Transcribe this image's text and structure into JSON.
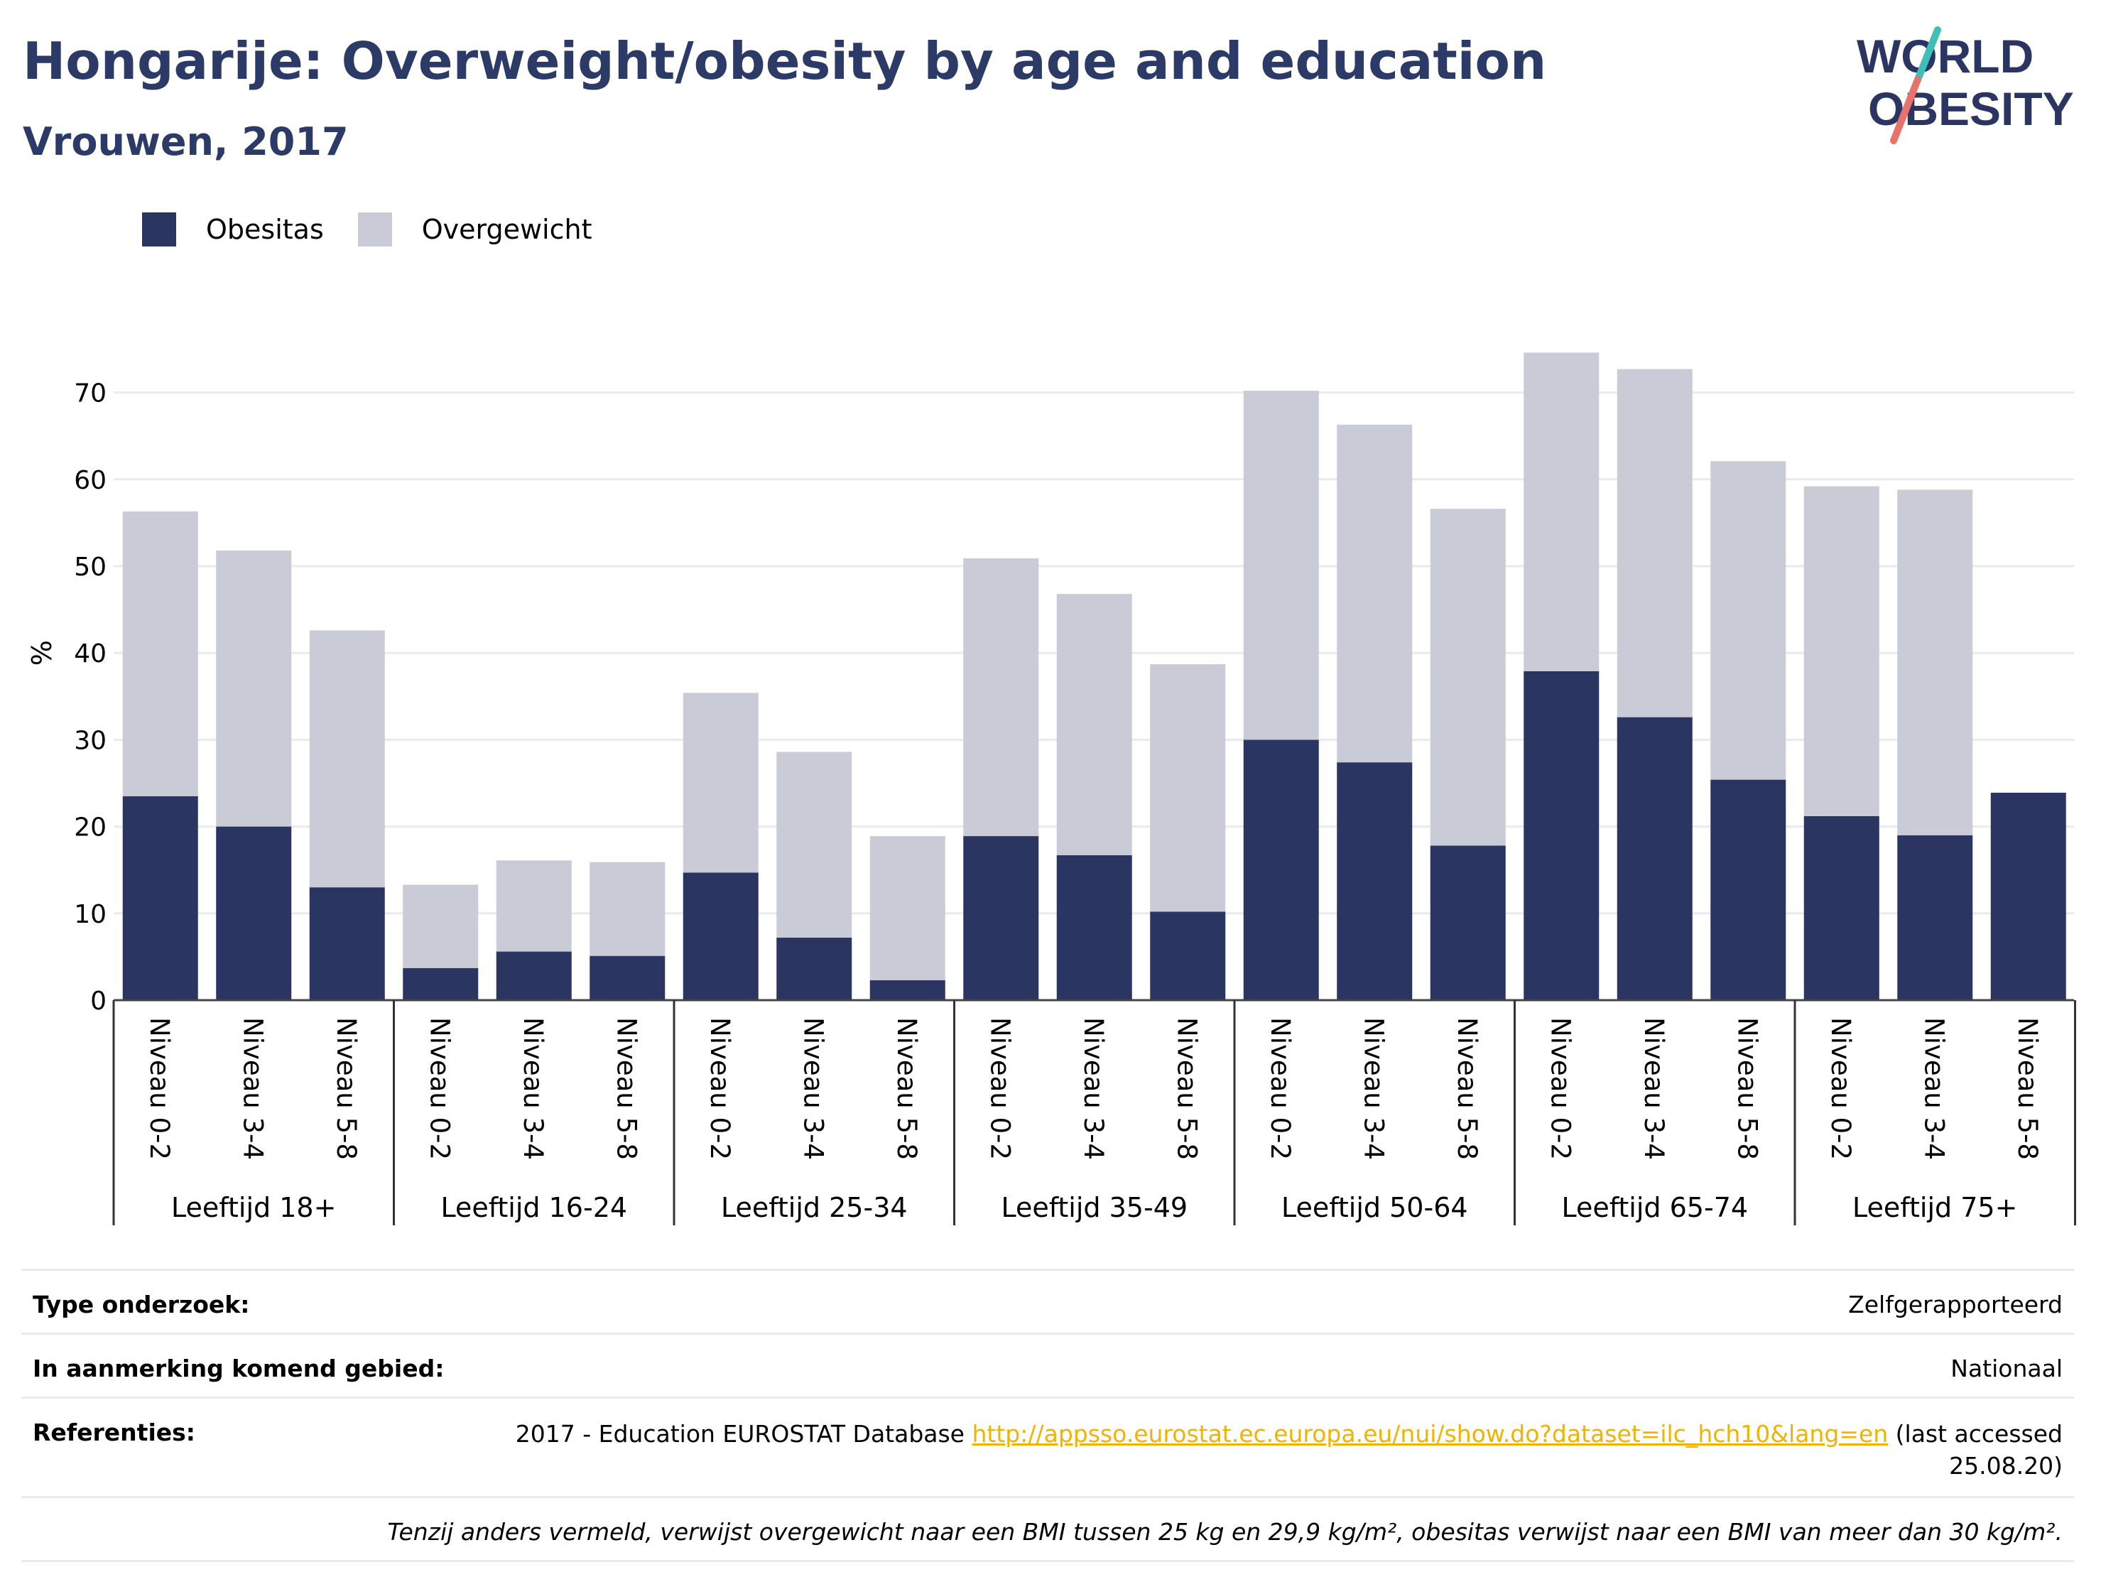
{
  "header": {
    "title": "Hongarije: Overweight/obesity by age and education",
    "subtitle": "Vrouwen, 2017"
  },
  "logo": {
    "line1": "WORLD",
    "line2": "OBESITY"
  },
  "legend": [
    {
      "label": "Obesitas",
      "color": "#2b3562"
    },
    {
      "label": "Overgewicht",
      "color": "#c9cbd6"
    }
  ],
  "chart_data": {
    "type": "bar",
    "stacked": true,
    "ylabel": "%",
    "ylim": [
      0,
      78
    ],
    "yticks": [
      0,
      10,
      20,
      30,
      40,
      50,
      60,
      70
    ],
    "grid": true,
    "legend_position": "top-left",
    "groups": [
      {
        "label": "Leeftijd 18+",
        "categories": [
          "Niveau 0-2",
          "Niveau 3-4",
          "Niveau 5-8"
        ]
      },
      {
        "label": "Leeftijd 16-24",
        "categories": [
          "Niveau 0-2",
          "Niveau 3-4",
          "Niveau 5-8"
        ]
      },
      {
        "label": "Leeftijd 25-34",
        "categories": [
          "Niveau 0-2",
          "Niveau 3-4",
          "Niveau 5-8"
        ]
      },
      {
        "label": "Leeftijd 35-49",
        "categories": [
          "Niveau 0-2",
          "Niveau 3-4",
          "Niveau 5-8"
        ]
      },
      {
        "label": "Leeftijd 50-64",
        "categories": [
          "Niveau 0-2",
          "Niveau 3-4",
          "Niveau 5-8"
        ]
      },
      {
        "label": "Leeftijd 65-74",
        "categories": [
          "Niveau 0-2",
          "Niveau 3-4",
          "Niveau 5-8"
        ]
      },
      {
        "label": "Leeftijd 75+",
        "categories": [
          "Niveau 0-2",
          "Niveau 3-4",
          "Niveau 5-8"
        ]
      }
    ],
    "series": [
      {
        "name": "Obesitas",
        "color": "#2b3562",
        "values": [
          23.5,
          20.0,
          13.0,
          3.7,
          5.6,
          5.1,
          14.7,
          7.2,
          2.3,
          18.9,
          16.7,
          10.2,
          30.0,
          27.4,
          17.8,
          37.9,
          32.6,
          25.4,
          21.2,
          19.0,
          23.9
        ]
      },
      {
        "name": "Overgewicht",
        "color": "#c9cbd6",
        "values": [
          32.8,
          31.8,
          29.6,
          9.6,
          10.5,
          10.8,
          20.7,
          21.4,
          16.6,
          32.0,
          30.1,
          28.5,
          40.2,
          38.9,
          38.8,
          36.7,
          40.1,
          36.7,
          38.0,
          39.8,
          0
        ]
      }
    ]
  },
  "info": {
    "survey_type_label": "Type onderzoek:",
    "survey_type_value": "Zelfgerapporteerd",
    "area_label": "In aanmerking komend gebied:",
    "area_value": "Nationaal",
    "references_label": "Referenties:",
    "references_prefix": "2017 - Education EUROSTAT Database",
    "references_link": "http://appsso.eurostat.ec.europa.eu/nui/show.do?dataset=ilc_hch10&lang=en",
    "references_suffix": "(last accessed 25.08.20)",
    "note": "Tenzij anders vermeld, verwijst overgewicht naar een BMI tussen 25 kg en 29,9 kg/m², obesitas verwijst naar een BMI van meer dan 30 kg/m²."
  }
}
